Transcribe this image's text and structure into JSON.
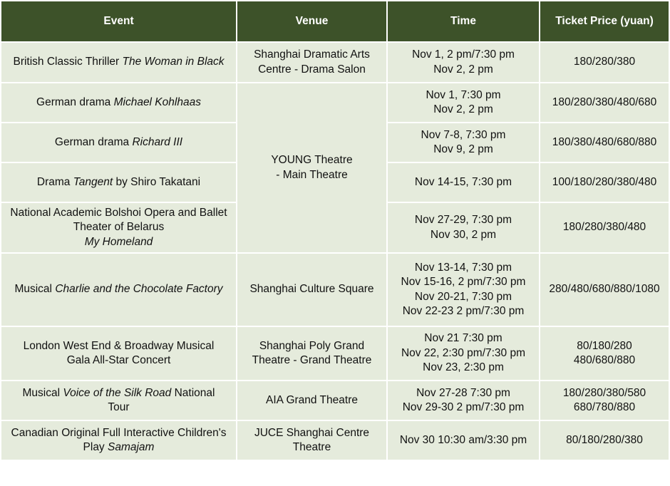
{
  "table": {
    "headers": [
      "Event",
      "Venue",
      "Time",
      "Ticket Price (yuan)"
    ],
    "rows": [
      {
        "event": [
          [
            {
              "t": "British Classic Thriller "
            },
            {
              "t": "The Woman in Black",
              "i": true
            }
          ]
        ],
        "venue": [
          "Shanghai Dramatic Arts",
          "Centre - Drama Salon"
        ],
        "time": [
          "Nov 1, 2 pm/7:30 pm",
          "Nov 2, 2 pm"
        ],
        "price": [
          "180/280/380"
        ]
      },
      {
        "event": [
          [
            {
              "t": "German drama "
            },
            {
              "t": "Michael Kohlhaas",
              "i": true
            }
          ]
        ],
        "venue": [
          "YOUNG Theatre",
          "- Main Theatre"
        ],
        "venue_rowspan": 4,
        "time": [
          "Nov 1, 7:30 pm",
          "Nov 2, 2 pm"
        ],
        "price": [
          "180/280/380/480/680"
        ]
      },
      {
        "event": [
          [
            {
              "t": "German drama "
            },
            {
              "t": "Richard III",
              "i": true
            }
          ]
        ],
        "time": [
          "Nov 7-8, 7:30 pm",
          "Nov 9, 2 pm"
        ],
        "price": [
          "180/380/480/680/880"
        ]
      },
      {
        "event": [
          [
            {
              "t": "Drama "
            },
            {
              "t": "Tangent",
              "i": true
            },
            {
              "t": " by Shiro Takatani"
            }
          ]
        ],
        "time": [
          "Nov 14-15, 7:30 pm"
        ],
        "price": [
          "100/180/280/380/480"
        ]
      },
      {
        "event": [
          [
            {
              "t": "National Academic Bolshoi Opera and Ballet"
            }
          ],
          [
            {
              "t": "Theater of Belarus"
            }
          ],
          [
            {
              "t": "My Homeland",
              "i": true
            }
          ]
        ],
        "time": [
          "Nov 27-29, 7:30 pm",
          "Nov 30, 2 pm"
        ],
        "price": [
          "180/280/380/480"
        ]
      },
      {
        "event": [
          [
            {
              "t": "Musical "
            },
            {
              "t": "Charlie and the Chocolate Factory",
              "i": true
            }
          ]
        ],
        "venue": [
          "Shanghai Culture Square"
        ],
        "time": [
          "Nov 13-14, 7:30 pm",
          "Nov 15-16, 2 pm/7:30 pm",
          "Nov 20-21, 7:30 pm",
          "Nov 22-23 2 pm/7:30 pm"
        ],
        "price": [
          "280/480/680/880/1080"
        ]
      },
      {
        "event": [
          [
            {
              "t": "London West End & Broadway Musical"
            }
          ],
          [
            {
              "t": "Gala All-Star Concert"
            }
          ]
        ],
        "venue": [
          "Shanghai Poly Grand",
          "Theatre - Grand Theatre"
        ],
        "time": [
          "Nov 21 7:30 pm",
          "Nov 22, 2:30 pm/7:30 pm",
          "Nov 23, 2:30 pm"
        ],
        "price": [
          "80/180/280",
          "480/680/880"
        ]
      },
      {
        "event": [
          [
            {
              "t": "Musical "
            },
            {
              "t": "Voice of the Silk Road",
              "i": true
            },
            {
              "t": " National"
            }
          ],
          [
            {
              "t": "Tour"
            }
          ]
        ],
        "venue": [
          "AIA Grand Theatre"
        ],
        "time": [
          "Nov 27-28 7:30 pm",
          "Nov 29-30 2 pm/7:30 pm"
        ],
        "price": [
          "180/280/380/580",
          "680/780/880"
        ]
      },
      {
        "event": [
          [
            {
              "t": "Canadian Original Full Interactive Children's"
            }
          ],
          [
            {
              "t": "Play "
            },
            {
              "t": "Samajam",
              "i": true
            }
          ]
        ],
        "venue": [
          "JUCE Shanghai Centre",
          "Theatre"
        ],
        "time": [
          "Nov 30 10:30 am/3:30 pm"
        ],
        "price": [
          "80/180/280/380"
        ]
      }
    ]
  },
  "colors": {
    "header_bg": "#3d5229",
    "cell_bg": "#e5ebdc",
    "border": "#ffffff"
  }
}
